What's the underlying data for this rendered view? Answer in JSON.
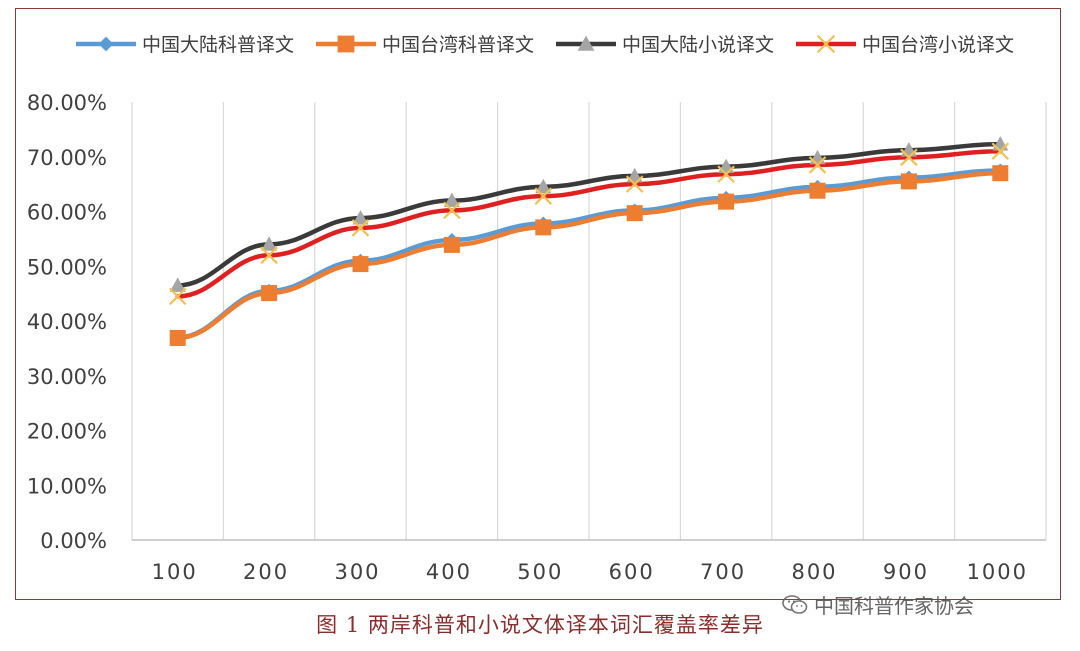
{
  "chart_data": {
    "type": "line",
    "categories": [
      "100",
      "200",
      "300",
      "400",
      "500",
      "600",
      "700",
      "800",
      "900",
      "1000"
    ],
    "ylim": [
      0,
      80
    ],
    "yticks": [
      "0.00%",
      "10.00%",
      "20.00%",
      "30.00%",
      "40.00%",
      "50.00%",
      "60.00%",
      "70.00%",
      "80.00%"
    ],
    "grid": "vertical",
    "legend_position": "top",
    "series": [
      {
        "name": "中国大陆科普译文",
        "color": "#5b9bd5",
        "marker": "diamond",
        "values": [
          37.0,
          45.5,
          51.0,
          54.8,
          57.8,
          60.2,
          62.5,
          64.5,
          66.2,
          67.5
        ]
      },
      {
        "name": "中国台湾科普译文",
        "color": "#ed7d31",
        "marker": "square",
        "values": [
          36.9,
          45.1,
          50.4,
          53.9,
          57.1,
          59.7,
          61.8,
          63.8,
          65.5,
          67.0
        ]
      },
      {
        "name": "中国大陆小说译文",
        "color": "#3a3a3a",
        "marker": "triangle",
        "values": [
          46.5,
          54.0,
          58.8,
          62.0,
          64.5,
          66.5,
          68.2,
          69.8,
          71.2,
          72.3
        ]
      },
      {
        "name": "中国台湾小说译文",
        "color": "#e02020",
        "marker": "x",
        "values": [
          44.5,
          52.0,
          57.0,
          60.2,
          62.8,
          65.0,
          66.8,
          68.5,
          69.9,
          71.0
        ]
      }
    ]
  },
  "caption": "图 1  两岸科普和小说文体译本词汇覆盖率差异",
  "watermark": "中国科普作家协会"
}
